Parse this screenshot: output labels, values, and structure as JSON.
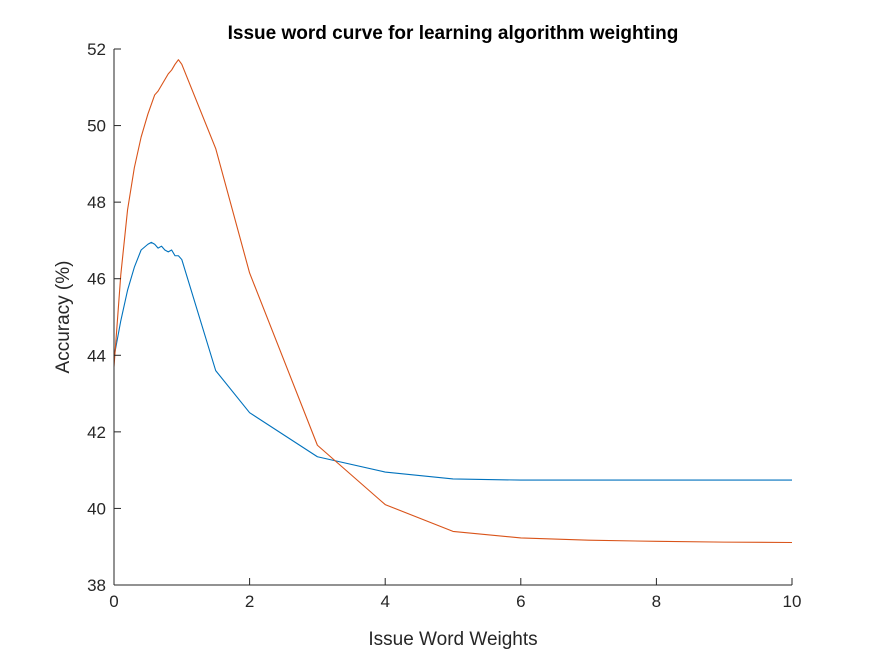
{
  "chart_data": {
    "type": "line",
    "title": "Issue word curve for learning algorithm weighting",
    "xlabel": "Issue Word Weights",
    "ylabel": "Accuracy (%)",
    "xlim": [
      0,
      10
    ],
    "ylim": [
      38,
      52
    ],
    "xticks": [
      0,
      2,
      4,
      6,
      8,
      10
    ],
    "xtick_labels": [
      "0",
      "2",
      "4",
      "6",
      "8",
      "10"
    ],
    "yticks": [
      38,
      40,
      42,
      44,
      46,
      48,
      50,
      52
    ],
    "ytick_labels": [
      "38",
      "40",
      "42",
      "44",
      "46",
      "48",
      "50",
      "52"
    ],
    "grid": false,
    "series": [
      {
        "color": "#0072BD",
        "x": [
          0,
          0.1,
          0.2,
          0.3,
          0.4,
          0.5,
          0.55,
          0.6,
          0.65,
          0.7,
          0.75,
          0.8,
          0.85,
          0.9,
          0.95,
          1.0,
          1.5,
          2,
          3,
          4,
          5,
          6,
          7,
          8,
          9,
          10
        ],
        "y": [
          43.95,
          44.9,
          45.7,
          46.3,
          46.75,
          46.9,
          46.95,
          46.9,
          46.8,
          46.85,
          46.75,
          46.7,
          46.75,
          46.6,
          46.6,
          46.5,
          43.6,
          42.5,
          41.35,
          40.95,
          40.77,
          40.74,
          40.74,
          40.74,
          40.74,
          40.74
        ]
      },
      {
        "color": "#D95319",
        "x": [
          0,
          0.1,
          0.2,
          0.3,
          0.4,
          0.5,
          0.6,
          0.65,
          0.7,
          0.75,
          0.8,
          0.85,
          0.9,
          0.95,
          1.0,
          1.5,
          2,
          3,
          4,
          5,
          6,
          7,
          8,
          9,
          10
        ],
        "y": [
          43.7,
          46.1,
          47.8,
          48.9,
          49.7,
          50.3,
          50.8,
          50.9,
          51.05,
          51.2,
          51.35,
          51.45,
          51.6,
          51.72,
          51.6,
          49.4,
          46.15,
          41.65,
          40.1,
          39.4,
          39.23,
          39.17,
          39.14,
          39.12,
          39.11
        ]
      }
    ]
  }
}
